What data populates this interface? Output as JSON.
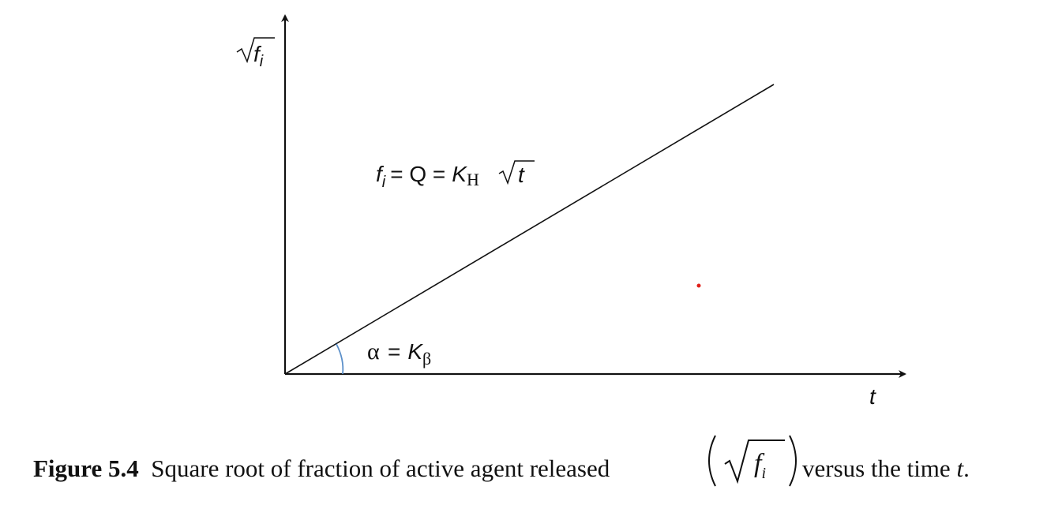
{
  "axes": {
    "y_label_symbol": "f",
    "y_label_sub": "i",
    "x_label": "t"
  },
  "annotations": {
    "equation": {
      "f": "f",
      "f_sub": "i",
      "eq1": "= Q =",
      "k": "K",
      "k_sub": "H",
      "radicand": "t"
    },
    "angle": {
      "alpha": "α",
      "eq": "=",
      "k": "K",
      "k_sub": "β"
    }
  },
  "caption": {
    "figure_number": "Figure 5.4",
    "text_before": "Square root of fraction of active agent released",
    "math_symbol": "f",
    "math_sub": "i",
    "text_after": "versus the time",
    "text_after_var": "t",
    "period": "."
  },
  "colors": {
    "axis": "#111111",
    "line": "#111111",
    "angle_arc": "#5b8fc9",
    "dot": "#e0201a"
  }
}
